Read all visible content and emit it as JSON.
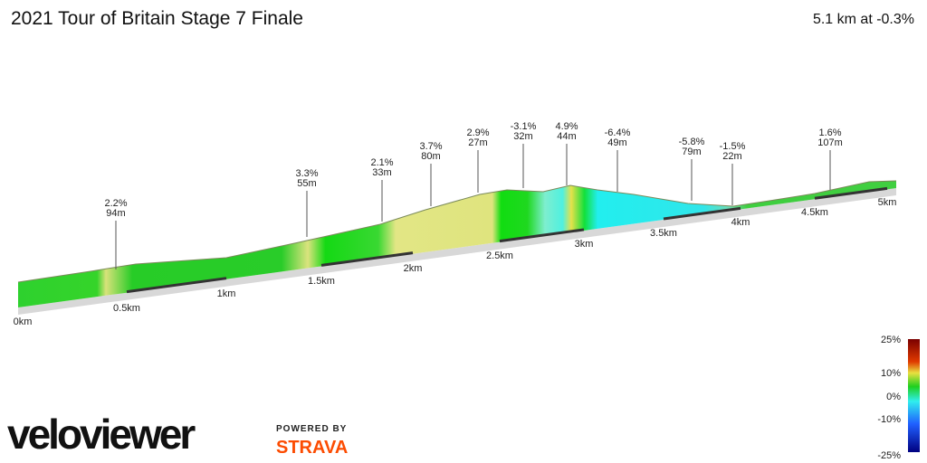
{
  "header": {
    "title": "2021 Tour of Britain Stage 7 Finale",
    "summary": "5.1 km at -0.3%"
  },
  "annotations": [
    {
      "grade": "2.2%",
      "length": "94m"
    },
    {
      "grade": "3.3%",
      "length": "55m"
    },
    {
      "grade": "2.1%",
      "length": "33m"
    },
    {
      "grade": "3.7%",
      "length": "80m"
    },
    {
      "grade": "2.9%",
      "length": "27m"
    },
    {
      "grade": "-3.1%",
      "length": "32m"
    },
    {
      "grade": "4.9%",
      "length": "44m"
    },
    {
      "grade": "-6.4%",
      "length": "49m"
    },
    {
      "grade": "-5.8%",
      "length": "79m"
    },
    {
      "grade": "-1.5%",
      "length": "22m"
    },
    {
      "grade": "1.6%",
      "length": "107m"
    }
  ],
  "distance_markers": [
    "0km",
    "0.5km",
    "1km",
    "1.5km",
    "2km",
    "2.5km",
    "3km",
    "3.5km",
    "4km",
    "4.5km",
    "5km"
  ],
  "legend": {
    "labels": [
      "25%",
      "10%",
      "0%",
      "-10%",
      "-25%"
    ]
  },
  "branding": {
    "logo": "veloviewer",
    "powered_by": "POWERED BY",
    "partner": "STRAVA"
  }
}
